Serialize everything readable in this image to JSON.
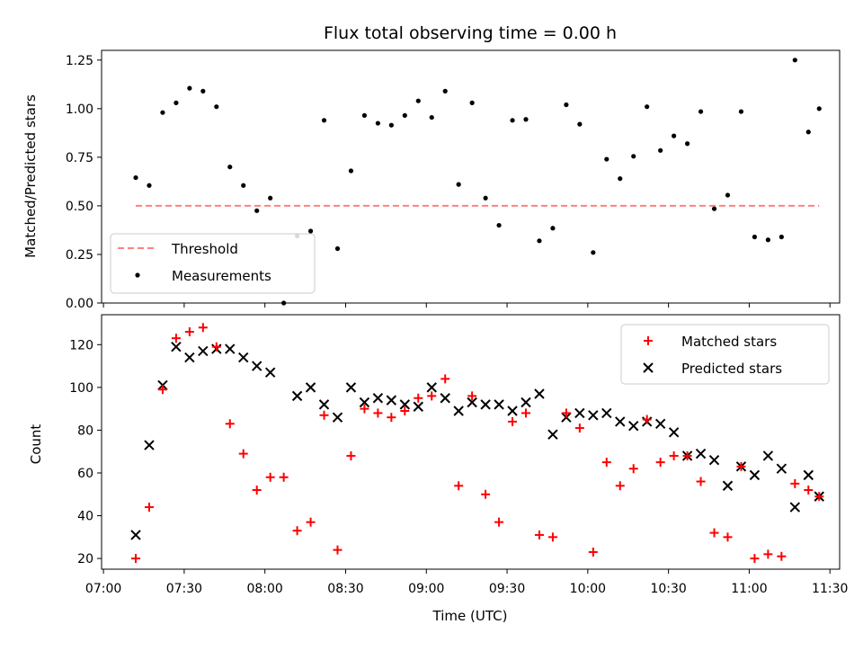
{
  "chart_data": [
    {
      "type": "scatter",
      "title": "Flux total observing time = 0.00 h",
      "xlabel": "",
      "ylabel": "Matched/Predicted stars",
      "xlim": [
        "07:00",
        "11:30"
      ],
      "ylim": [
        0.0,
        1.3
      ],
      "yticks": [
        "0.00",
        "0.25",
        "0.50",
        "0.75",
        "1.00",
        "1.25"
      ],
      "legend_position": "lower-left",
      "colors": {
        "threshold": "#ff8080",
        "measurements": "#000000"
      },
      "threshold": {
        "name": "Threshold",
        "y": 0.5,
        "x_range": [
          "07:12",
          "11:26"
        ]
      },
      "series": [
        {
          "name": "Measurements",
          "x": [
            "07:12",
            "07:17",
            "07:22",
            "07:27",
            "07:32",
            "07:37",
            "07:42",
            "07:47",
            "07:52",
            "07:57",
            "08:02",
            "08:07",
            "08:12",
            "08:17",
            "08:22",
            "08:27",
            "08:32",
            "08:37",
            "08:42",
            "08:47",
            "08:52",
            "08:57",
            "09:02",
            "09:07",
            "09:12",
            "09:17",
            "09:22",
            "09:27",
            "09:32",
            "09:37",
            "09:42",
            "09:47",
            "09:52",
            "09:57",
            "10:02",
            "10:07",
            "10:12",
            "10:17",
            "10:22",
            "10:27",
            "10:32",
            "10:37",
            "10:42",
            "10:47",
            "10:52",
            "10:57",
            "11:02",
            "11:07",
            "11:12",
            "11:17",
            "11:22",
            "11:26"
          ],
          "y": [
            0.645,
            0.605,
            0.98,
            1.03,
            1.105,
            1.09,
            1.01,
            0.7,
            0.605,
            0.475,
            0.54,
            0.0,
            0.345,
            0.37,
            0.94,
            0.28,
            0.68,
            0.965,
            0.925,
            0.915,
            0.965,
            1.04,
            0.955,
            1.09,
            0.61,
            1.03,
            0.54,
            0.4,
            0.94,
            0.945,
            0.32,
            0.385,
            1.02,
            0.92,
            0.26,
            0.74,
            0.64,
            0.755,
            1.01,
            0.785,
            0.86,
            0.82,
            0.985,
            0.485,
            0.555,
            0.985,
            0.34,
            0.325,
            0.34,
            1.25,
            0.88,
            1.0
          ]
        }
      ]
    },
    {
      "type": "scatter",
      "title": "",
      "xlabel": "Time (UTC)",
      "ylabel": "Count",
      "xlim": [
        "07:00",
        "11:30"
      ],
      "xticks": [
        "07:00",
        "07:30",
        "08:00",
        "08:30",
        "09:00",
        "09:30",
        "10:00",
        "10:30",
        "11:00",
        "11:30"
      ],
      "ylim": [
        15,
        134
      ],
      "yticks": [
        "20",
        "40",
        "60",
        "80",
        "100",
        "120"
      ],
      "legend_position": "top-right",
      "colors": {
        "matched": "#ff0000",
        "predicted": "#000000"
      },
      "series": [
        {
          "name": "Matched stars",
          "marker": "+",
          "x": [
            "07:12",
            "07:17",
            "07:22",
            "07:27",
            "07:32",
            "07:37",
            "07:42",
            "07:47",
            "07:52",
            "07:57",
            "08:02",
            "08:07",
            "08:12",
            "08:17",
            "08:22",
            "08:27",
            "08:32",
            "08:37",
            "08:42",
            "08:47",
            "08:52",
            "08:57",
            "09:02",
            "09:07",
            "09:12",
            "09:17",
            "09:22",
            "09:27",
            "09:32",
            "09:37",
            "09:42",
            "09:47",
            "09:52",
            "09:57",
            "10:02",
            "10:07",
            "10:12",
            "10:17",
            "10:22",
            "10:27",
            "10:32",
            "10:37",
            "10:42",
            "10:47",
            "10:52",
            "10:57",
            "11:02",
            "11:07",
            "11:12",
            "11:17",
            "11:22",
            "11:26"
          ],
          "y": [
            20,
            44,
            99,
            123,
            126,
            128,
            119,
            83,
            69,
            52,
            58,
            58,
            33,
            37,
            87,
            24,
            68,
            90,
            88,
            86,
            89,
            95,
            96,
            104,
            54,
            96,
            50,
            37,
            84,
            88,
            31,
            30,
            88,
            81,
            23,
            65,
            54,
            62,
            85,
            65,
            68,
            68,
            56,
            32,
            30,
            63,
            20,
            22,
            21,
            55,
            52,
            49
          ]
        },
        {
          "name": "Predicted stars",
          "marker": "x",
          "x": [
            "07:12",
            "07:17",
            "07:22",
            "07:27",
            "07:32",
            "07:37",
            "07:42",
            "07:47",
            "07:52",
            "07:57",
            "08:02",
            "08:12",
            "08:17",
            "08:22",
            "08:27",
            "08:32",
            "08:37",
            "08:42",
            "08:47",
            "08:52",
            "08:57",
            "09:02",
            "09:07",
            "09:12",
            "09:17",
            "09:22",
            "09:27",
            "09:32",
            "09:37",
            "09:42",
            "09:47",
            "09:52",
            "09:57",
            "10:02",
            "10:07",
            "10:12",
            "10:17",
            "10:22",
            "10:27",
            "10:32",
            "10:37",
            "10:42",
            "10:47",
            "10:52",
            "10:57",
            "11:02",
            "11:07",
            "11:12",
            "11:17",
            "11:22",
            "11:26"
          ],
          "y": [
            31,
            73,
            101,
            119,
            114,
            117,
            118,
            118,
            114,
            110,
            107,
            96,
            100,
            92,
            86,
            100,
            93,
            95,
            94,
            92,
            91,
            100,
            95,
            89,
            93,
            92,
            92,
            89,
            93,
            97,
            78,
            86,
            88,
            87,
            88,
            84,
            82,
            84,
            83,
            79,
            68,
            69,
            66,
            54,
            63,
            59,
            68,
            62,
            44,
            59,
            49
          ]
        }
      ]
    }
  ]
}
